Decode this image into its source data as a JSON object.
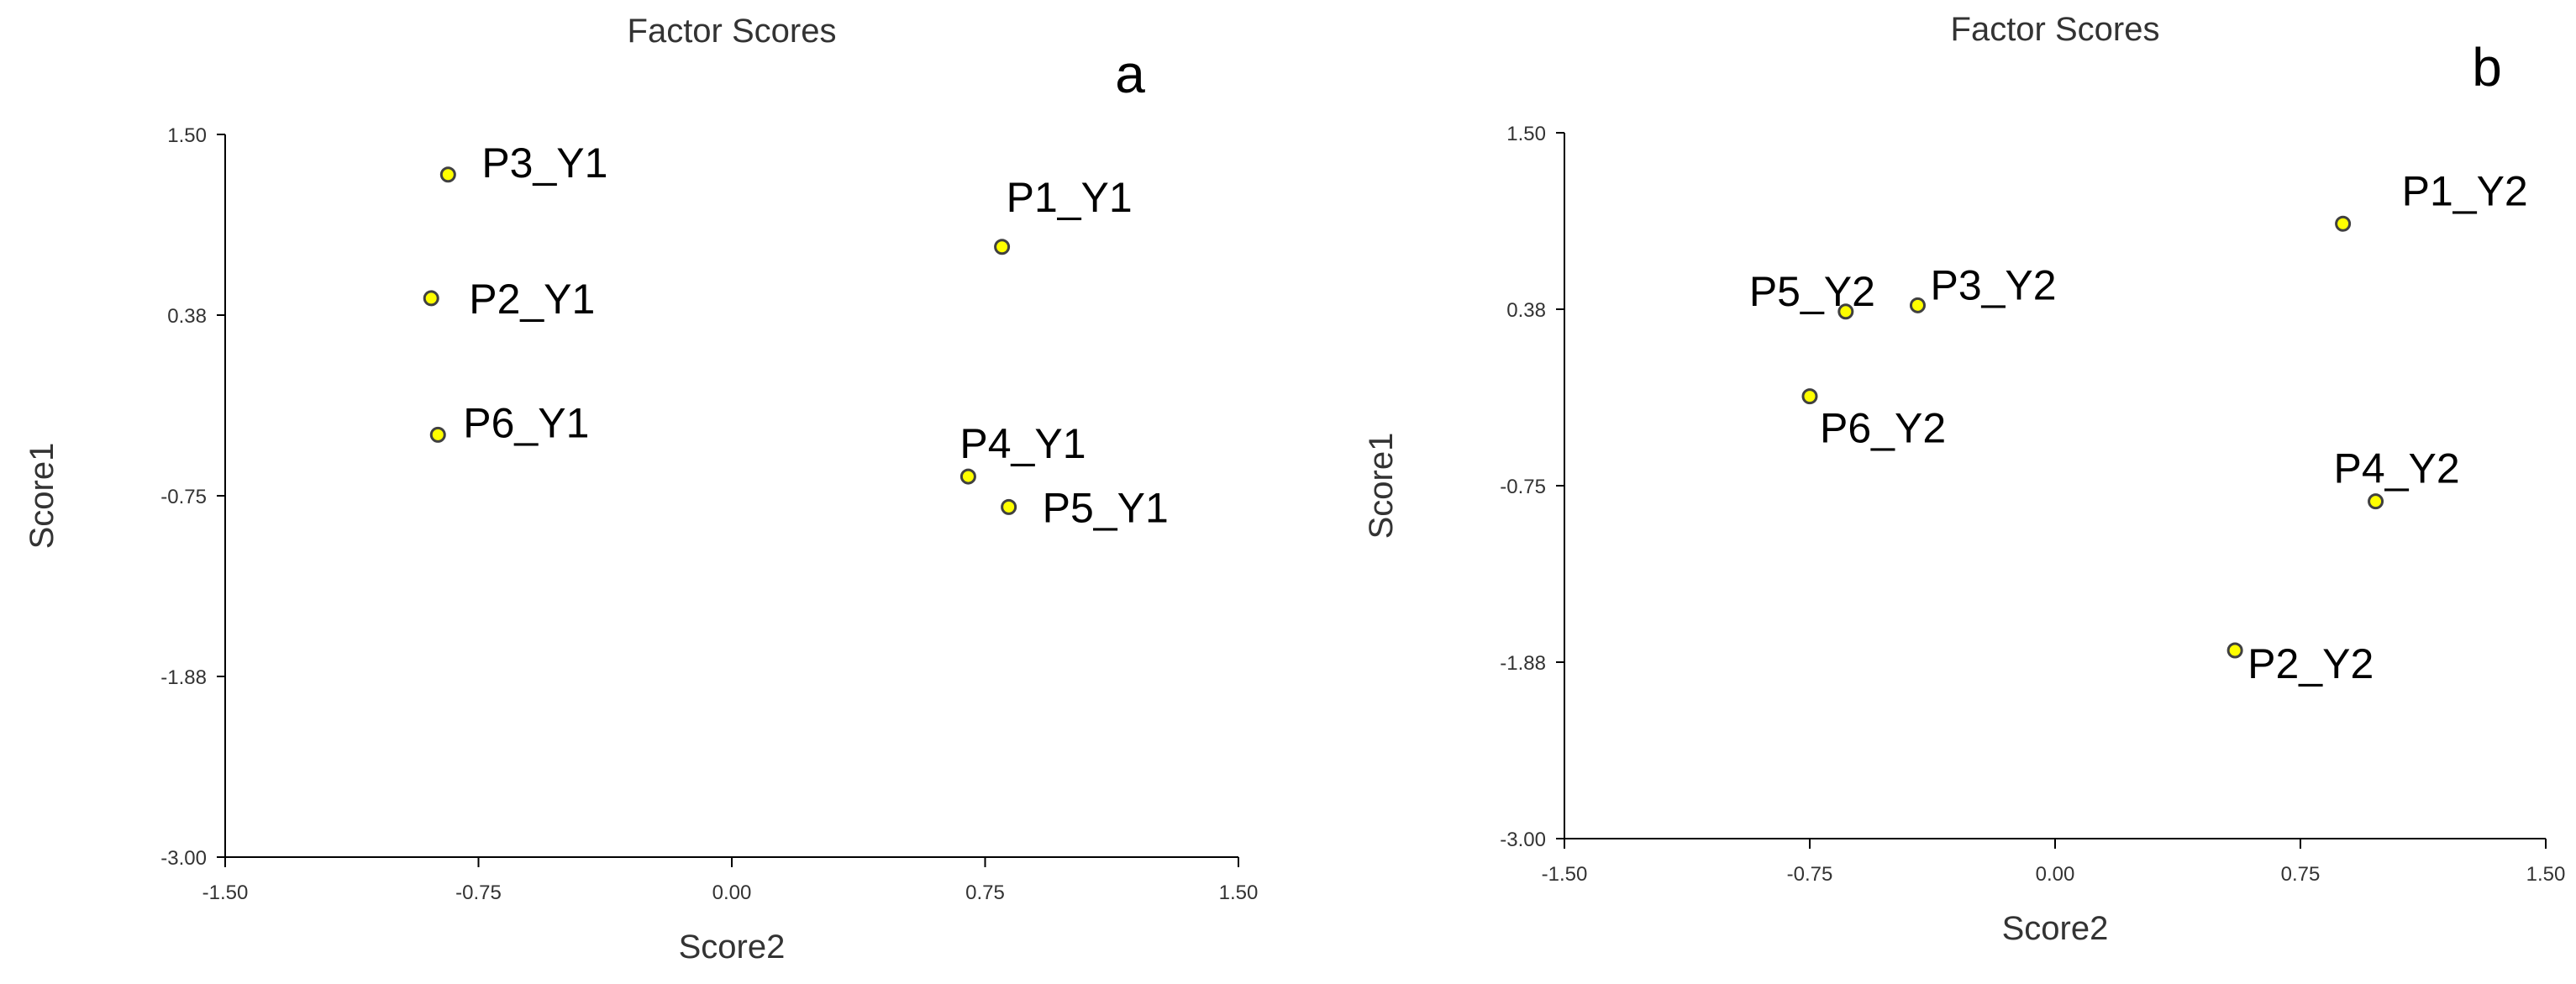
{
  "chart_data": [
    {
      "type": "scatter",
      "panel": "a",
      "title": "Factor Scores",
      "xlabel": "Score2",
      "ylabel": "Score1",
      "xlim": [
        -1.5,
        1.5
      ],
      "ylim": [
        -3.0,
        1.5
      ],
      "xticks": [
        "-1.50",
        "-0.75",
        "0.00",
        "0.75",
        "1.50"
      ],
      "yticks": [
        "1.50",
        "0.38",
        "-0.75",
        "-1.88",
        "-3.00"
      ],
      "point_color": "#ffff00",
      "points": [
        {
          "label": "P3_Y1",
          "x": -0.84,
          "y": 1.25
        },
        {
          "label": "P2_Y1",
          "x": -0.89,
          "y": 0.48
        },
        {
          "label": "P6_Y1",
          "x": -0.87,
          "y": -0.37
        },
        {
          "label": "P1_Y1",
          "x": 0.8,
          "y": 0.8
        },
        {
          "label": "P4_Y1",
          "x": 0.7,
          "y": -0.63
        },
        {
          "label": "P5_Y1",
          "x": 0.82,
          "y": -0.82
        }
      ]
    },
    {
      "type": "scatter",
      "panel": "b",
      "title": "Factor Scores",
      "xlabel": "Score2",
      "ylabel": "Score1",
      "xlim": [
        -1.5,
        1.5
      ],
      "ylim": [
        -3.0,
        1.5
      ],
      "xticks": [
        "-1.50",
        "-0.75",
        "0.00",
        "0.75",
        "1.50"
      ],
      "yticks": [
        "1.50",
        "0.38",
        "-0.75",
        "-1.88",
        "-3.00"
      ],
      "point_color": "#ffff00",
      "points": [
        {
          "label": "P1_Y2",
          "x": 0.88,
          "y": 0.92
        },
        {
          "label": "P5_Y2",
          "x": -0.64,
          "y": 0.36
        },
        {
          "label": "P3_Y2",
          "x": -0.42,
          "y": 0.4
        },
        {
          "label": "P6_Y2",
          "x": -0.75,
          "y": -0.18
        },
        {
          "label": "P4_Y2",
          "x": 0.98,
          "y": -0.85
        },
        {
          "label": "P2_Y2",
          "x": 0.55,
          "y": -1.8
        }
      ]
    }
  ]
}
